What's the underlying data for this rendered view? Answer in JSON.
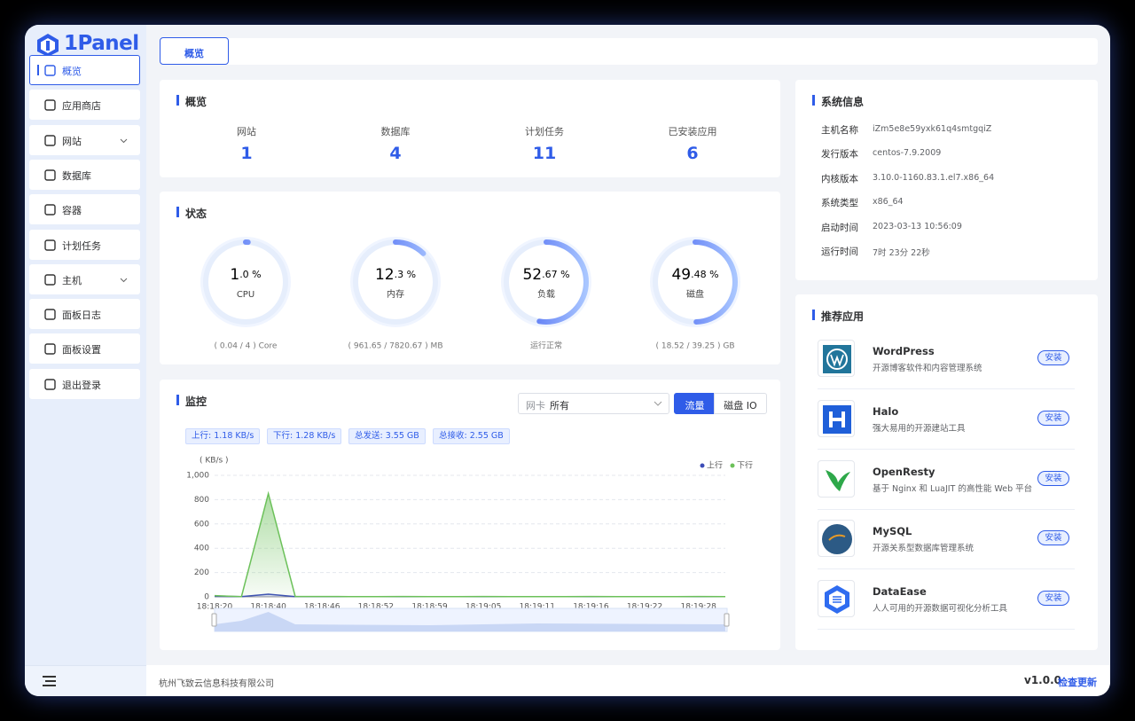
{
  "sidebar": {
    "logo": "1Panel",
    "menu": [
      "概览",
      "应用商店",
      "网站",
      "数据库",
      "容器",
      "计划任务",
      "主机",
      "面板日志",
      "面板设置",
      "退出登录"
    ]
  },
  "tabs": [
    "概览"
  ],
  "overview": {
    "title": "概览",
    "stats": [
      {
        "label": "网站",
        "value": 1
      },
      {
        "label": "数据库",
        "value": 4
      },
      {
        "label": "计划任务",
        "value": 11
      },
      {
        "label": "已安装应用",
        "value": 6
      }
    ]
  },
  "status": {
    "title": "状态",
    "gauges": [
      {
        "name": "CPU",
        "percent": 1.0,
        "main": "1",
        "fraction": ".0 %",
        "detail": "( 0.04 / 4 ) Core"
      },
      {
        "name": "内存",
        "percent": 12.3,
        "main": "12",
        "fraction": ".3 %",
        "detail": "( 961.65 / 7820.67 ) MB"
      },
      {
        "name": "负载",
        "percent": 52.67,
        "main": "52",
        "fraction": ".67 %",
        "detail": "运行正常"
      },
      {
        "name": "磁盘",
        "percent": 49.48,
        "main": "49",
        "fraction": ".48 %",
        "detail": "( 18.52 / 39.25 ) GB"
      }
    ]
  },
  "monitor": {
    "title": "监控",
    "nic_label": "网卡",
    "nic_value": "所有",
    "buttons": [
      "流量",
      "磁盘 IO"
    ],
    "tags": [
      "上行: 1.18 KB/s",
      "下行: 1.28 KB/s",
      "总发送: 3.55 GB",
      "总接收: 2.55 GB"
    ],
    "chart": {
      "type": "line",
      "y_label": "( KB/s )",
      "categories": [
        "18:18:20",
        null,
        "18:18:40",
        null,
        "18:18:46",
        null,
        "18:18:52",
        null,
        "18:18:59",
        null,
        "18:19:05",
        null,
        "18:19:11",
        null,
        "18:19:16",
        null,
        "18:19:22",
        null,
        "18:19:28",
        null
      ],
      "series": [
        {
          "name": "上行",
          "color": "#3d4db7",
          "values": [
            5,
            2,
            22,
            2,
            2,
            2,
            2,
            2,
            2,
            2,
            2,
            2,
            2,
            2,
            2,
            2,
            2,
            2,
            2,
            2
          ]
        },
        {
          "name": "下行",
          "color": "#6cc15a",
          "values": [
            10,
            2,
            850,
            3,
            3,
            2,
            2,
            3,
            2,
            2,
            3,
            2,
            2,
            2,
            3,
            2,
            2,
            2,
            3,
            2
          ]
        }
      ],
      "ylim": [
        0,
        1000
      ],
      "yticks": [
        0,
        200,
        400,
        600,
        800,
        {
          "value": 1000,
          "label": "1,000"
        }
      ],
      "grid": true
    }
  },
  "system_info": {
    "title": "系统信息",
    "rows": [
      [
        "主机名称",
        "iZm5e8e59yxk61q4smtgqiZ"
      ],
      [
        "发行版本",
        "centos-7.9.2009"
      ],
      [
        "内核版本",
        "3.10.0-1160.83.1.el7.x86_64"
      ],
      [
        "系统类型",
        "x86_64"
      ],
      [
        "启动时间",
        "2023-03-13 10:56:09"
      ],
      [
        "运行时间",
        "7时 23分 22秒"
      ]
    ]
  },
  "recommended": {
    "title": "推荐应用",
    "install": "安装",
    "apps": [
      {
        "name": "WordPress",
        "description": "开源博客软件和内容管理系统"
      },
      {
        "name": "Halo",
        "description": "强大易用的开源建站工具"
      },
      {
        "name": "OpenResty",
        "description": "基于 Nginx 和 LuaJIT 的高性能 Web 平台"
      },
      {
        "name": "MySQL",
        "description": "开源关系型数据库管理系统"
      },
      {
        "name": "DataEase",
        "description": "人人可用的开源数据可视化分析工具"
      }
    ]
  },
  "footer": {
    "company": "杭州飞致云信息科技有限公司",
    "version": "v1.0.0",
    "update": "检查更新"
  }
}
